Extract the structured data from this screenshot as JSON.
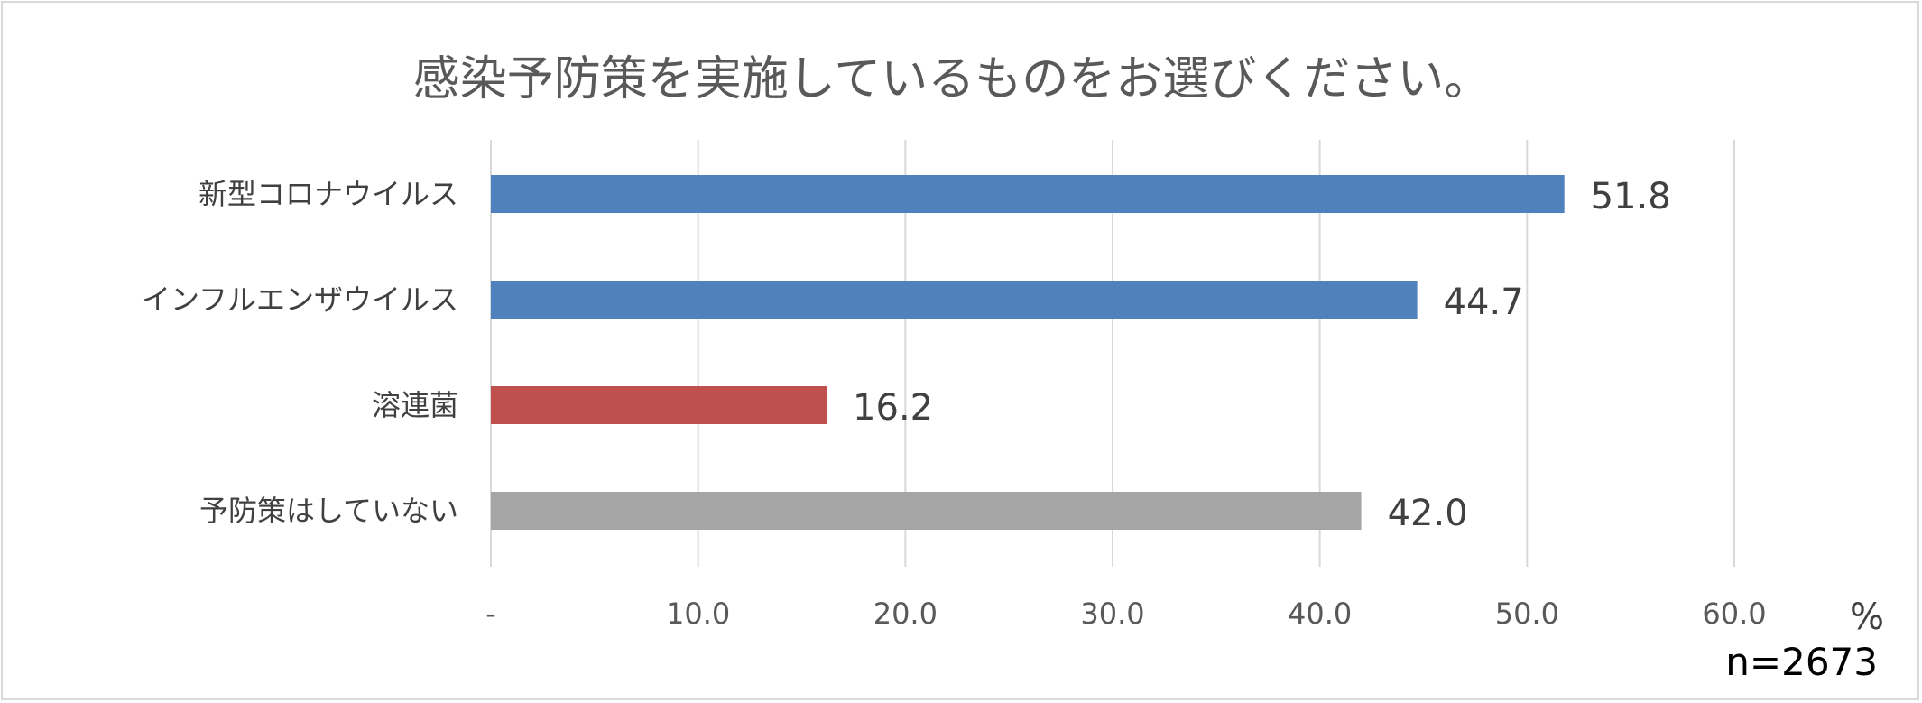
{
  "chart_data": {
    "type": "bar",
    "orientation": "horizontal",
    "title": "感染予防策を実施しているものをお選びください。",
    "categories": [
      "新型コロナウイルス",
      "インフルエンザウイルス",
      "溶連菌",
      "予防策はしていない"
    ],
    "values": [
      51.8,
      44.7,
      16.2,
      42.0
    ],
    "value_labels": [
      "51.8",
      "44.7",
      "16.2",
      "42.0"
    ],
    "bar_colors": [
      "#4f81bd",
      "#4f81bd",
      "#c0504d",
      "#a5a5a5"
    ],
    "xlim": [
      0,
      60
    ],
    "x_ticks": [
      0,
      10,
      20,
      30,
      40,
      50,
      60
    ],
    "x_tick_labels": [
      "-",
      "10.0",
      "20.0",
      "30.0",
      "40.0",
      "50.0",
      "60.0"
    ],
    "unit": "%",
    "note": "n=2673",
    "grid": true,
    "legend": "none"
  }
}
